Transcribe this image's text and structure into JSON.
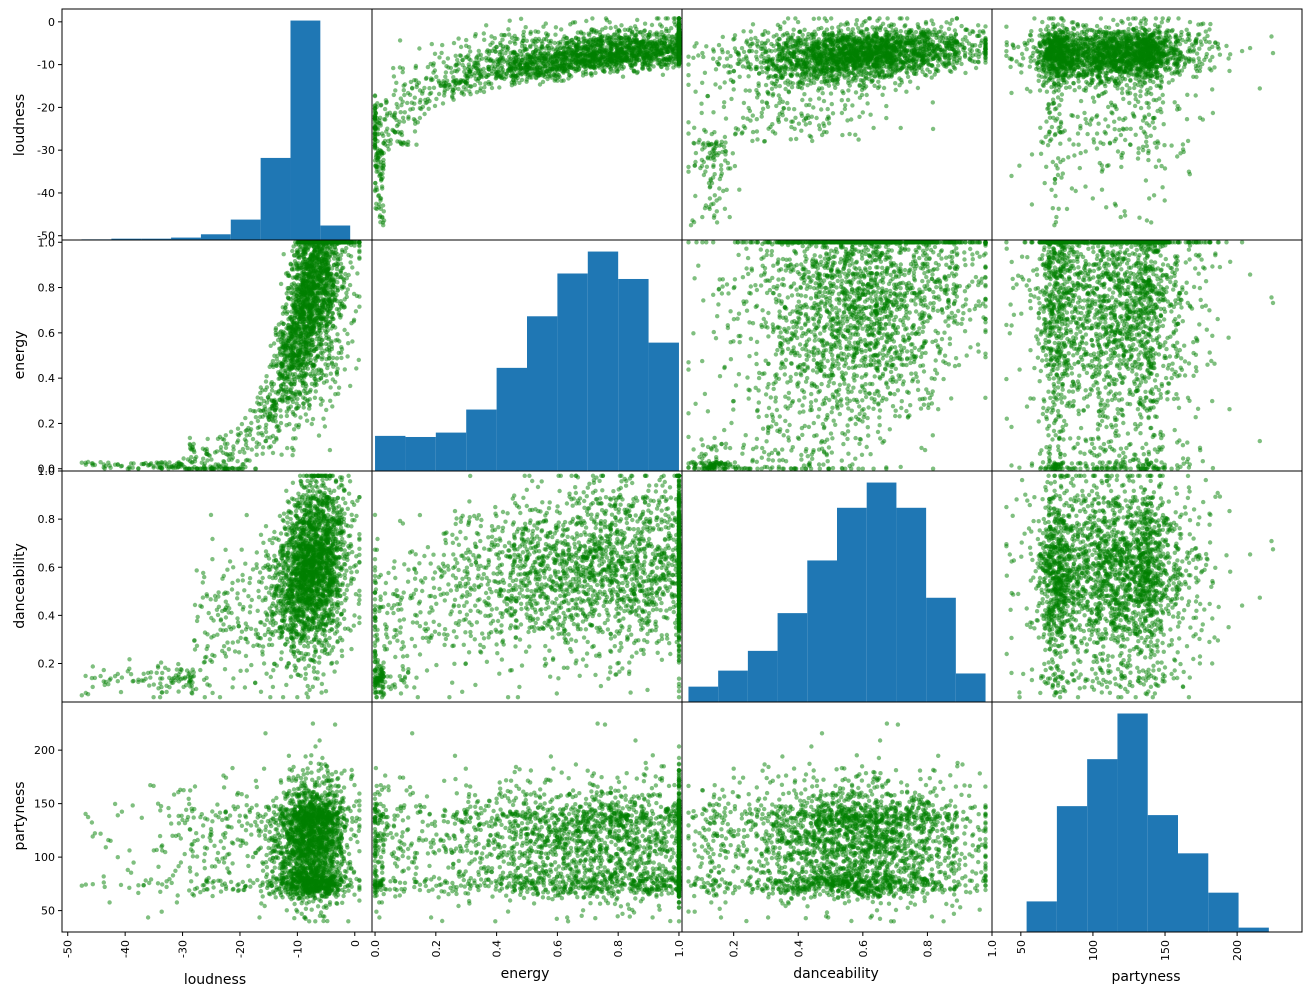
{
  "figure": {
    "point_color": "#008000",
    "hist_color": "#1f77b4",
    "frame_color": "#000000",
    "background": "#ffffff"
  },
  "chart_data": {
    "type": "scatter_matrix",
    "variables": [
      "loudness",
      "energy",
      "danceability",
      "partyness"
    ],
    "axis_labels": {
      "x": [
        "loudness",
        "energy",
        "danceability",
        "partyness"
      ],
      "y": [
        "loudness",
        "energy",
        "danceability",
        "partyness"
      ]
    },
    "ranges": {
      "loudness": [
        -51,
        3
      ],
      "energy": [
        -0.01,
        1.01
      ],
      "danceability": [
        0.04,
        1.0
      ],
      "partyness": [
        30,
        245
      ]
    },
    "ticks": {
      "loudness": {
        "values": [
          -50,
          -40,
          -30,
          -20,
          -10,
          0
        ],
        "labels": [
          "-50",
          "-40",
          "-30",
          "-20",
          "-10",
          "0"
        ]
      },
      "energy": {
        "values": [
          0.0,
          0.2,
          0.4,
          0.6,
          0.8,
          1.0
        ],
        "labels": [
          "0.0",
          "0.2",
          "0.4",
          "0.6",
          "0.8",
          "1.0"
        ]
      },
      "danceability": {
        "values": [
          0.2,
          0.4,
          0.6,
          0.8,
          1.0
        ],
        "labels": [
          "0.2",
          "0.4",
          "0.6",
          "0.8",
          "1.0"
        ]
      },
      "partyness": {
        "values": [
          50,
          100,
          150,
          200
        ],
        "labels": [
          "50",
          "100",
          "150",
          "200"
        ]
      }
    },
    "histograms": {
      "loudness": {
        "bin_edges": [
          -47.6,
          -42.4,
          -37.2,
          -32.0,
          -26.8,
          -21.6,
          -16.4,
          -11.2,
          -6.0,
          -0.8,
          4.4
        ],
        "rel_heights": [
          0.003,
          0.006,
          0.006,
          0.011,
          0.026,
          0.093,
          0.374,
          1.0,
          0.066,
          0.0
        ]
      },
      "energy": {
        "bin_edges": [
          0.0,
          0.1,
          0.2,
          0.3,
          0.4,
          0.5,
          0.6,
          0.7,
          0.8,
          0.9,
          1.0
        ],
        "rel_heights": [
          0.16,
          0.155,
          0.175,
          0.28,
          0.47,
          0.705,
          0.9,
          1.0,
          0.875,
          0.585
        ]
      },
      "danceability": {
        "bin_edges": [
          0.06,
          0.152,
          0.244,
          0.336,
          0.428,
          0.52,
          0.612,
          0.704,
          0.796,
          0.888,
          0.98
        ],
        "rel_heights": [
          0.07,
          0.143,
          0.233,
          0.405,
          0.645,
          0.885,
          1.0,
          0.885,
          0.475,
          0.13
        ]
      },
      "partyness": {
        "bin_edges": [
          33,
          54,
          75,
          96,
          117,
          138,
          159,
          180,
          201,
          222,
          243
        ],
        "rel_heights": [
          0.0,
          0.14,
          0.576,
          0.791,
          1.0,
          0.535,
          0.36,
          0.18,
          0.02,
          0.0
        ]
      }
    },
    "point_alpha": 0.5,
    "grid": false,
    "legend": "none"
  }
}
